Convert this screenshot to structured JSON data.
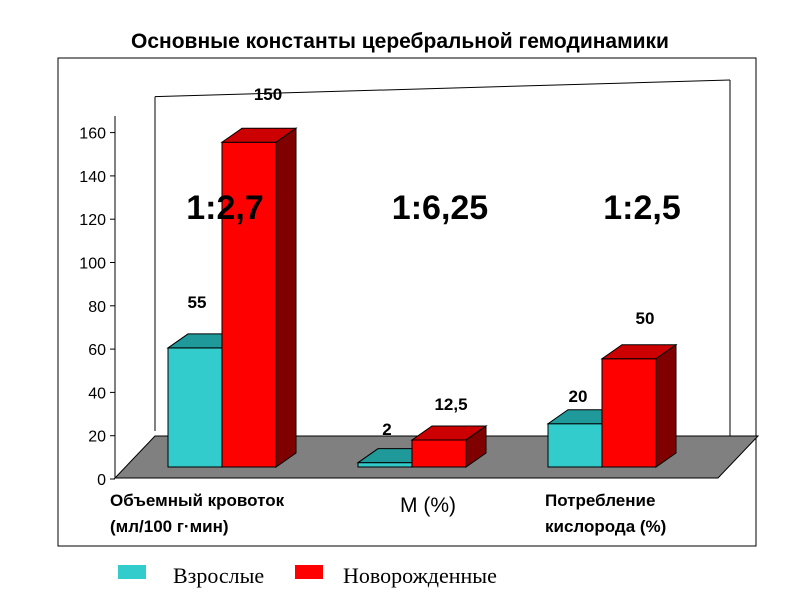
{
  "chart_data": {
    "type": "bar",
    "title": "Основные константы церебральной гемодинамики",
    "categories": [
      [
        "Объемный кровоток",
        "(мл/100 г·мин)"
      ],
      [
        "М (%)"
      ],
      [
        "Потребление",
        "кислорода (%)"
      ]
    ],
    "series": [
      {
        "name": "Взрослые",
        "values": [
          55,
          2,
          20
        ],
        "labels": [
          "55",
          "2",
          "20"
        ],
        "color": "#33cccc"
      },
      {
        "name": "Новорожденные",
        "values": [
          150,
          12.5,
          50
        ],
        "labels": [
          "150",
          "12,5",
          "50"
        ],
        "color": "#ff0000"
      }
    ],
    "ratios": [
      "1:2,7",
      "1:6,25",
      "1:2,5"
    ],
    "ylim": [
      0,
      160
    ],
    "yticks": [
      "0",
      "20",
      "40",
      "60",
      "80",
      "100",
      "120",
      "140",
      "160"
    ],
    "xlabel": "",
    "ylabel": "",
    "grid": false,
    "legend_position": "bottom",
    "colors": {
      "adult_face": "#33cccc",
      "adult_top": "#1f9999",
      "adult_side": "#178080",
      "newborn_face": "#ff0000",
      "newborn_top": "#cc0000",
      "newborn_side": "#800000",
      "floor": "#808080",
      "frame": "#000000"
    }
  }
}
